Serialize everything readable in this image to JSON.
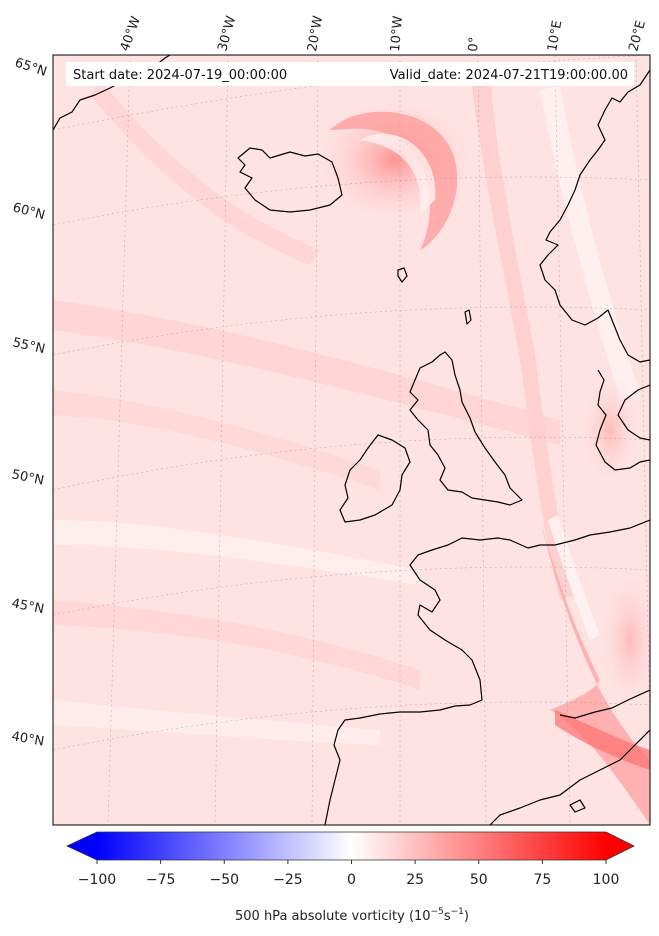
{
  "header": {
    "start_date": "Start date: 2024-07-19_00:00:00",
    "valid_date": "Valid_date: 2024-07-21T19:00:00.00"
  },
  "lon_labels": [
    "40°W",
    "30°W",
    "20°W",
    "10°W",
    "0°",
    "10°E",
    "20°E"
  ],
  "lat_labels": [
    "65°N",
    "60°N",
    "55°N",
    "50°N",
    "45°N",
    "40°N"
  ],
  "colorbar": {
    "ticks": [
      "−100",
      "−75",
      "−50",
      "−25",
      "0",
      "25",
      "50",
      "75",
      "100"
    ],
    "label": "500 hPa absolute vorticity (10",
    "label_exp1": "−5",
    "label_mid": "s",
    "label_exp2": "−1",
    "label_end": ")",
    "vmin": -100,
    "vmax": 100,
    "low_color": "#0000ff",
    "mid_color": "#ffffff",
    "high_color": "#ff0000"
  }
}
